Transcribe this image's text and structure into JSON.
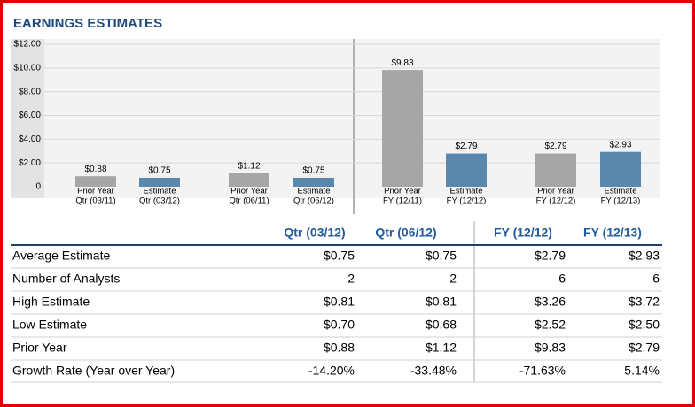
{
  "title": "EARNINGS ESTIMATES",
  "chart_data": {
    "type": "bar",
    "categories": [
      [
        "Prior Year",
        "Qtr (03/11)"
      ],
      [
        "Estimate",
        "Qtr (03/12)"
      ],
      [
        "Prior Year",
        "Qtr (06/11)"
      ],
      [
        "Estimate",
        "Qtr (06/12)"
      ],
      [
        "Prior Year",
        "FY (12/11)"
      ],
      [
        "Estimate",
        "FY (12/12)"
      ],
      [
        "Prior Year",
        "FY (12/12)"
      ],
      [
        "Estimate",
        "FY (12/13)"
      ]
    ],
    "values": [
      0.88,
      0.75,
      1.12,
      0.75,
      9.83,
      2.79,
      2.79,
      2.93
    ],
    "value_labels": [
      "$0.88",
      "$0.75",
      "$1.12",
      "$0.75",
      "$9.83",
      "$2.79",
      "$2.79",
      "$2.93"
    ],
    "colors": [
      "#a6a6a6",
      "#5b87ad",
      "#a6a6a6",
      "#5b87ad",
      "#a6a6a6",
      "#5b87ad",
      "#a6a6a6",
      "#5b87ad"
    ],
    "ylim": [
      0,
      12
    ],
    "yticks": [
      0,
      {
        "value": 2,
        "label": "$2.00"
      },
      {
        "value": 4,
        "label": "$4.00"
      },
      {
        "value": 6,
        "label": "$6.00"
      },
      {
        "value": 8,
        "label": "$8.00"
      },
      {
        "value": 10,
        "label": "$10.00"
      },
      {
        "value": 12,
        "label": "$12.00"
      }
    ],
    "grid": true
  },
  "table": {
    "columns": [
      "Qtr (03/12)",
      "Qtr (06/12)",
      "FY (12/12)",
      "FY (12/13)"
    ],
    "rows": [
      [
        "Average Estimate",
        "$0.75",
        "$0.75",
        "$2.79",
        "$2.93"
      ],
      [
        "Number of Analysts",
        "2",
        "2",
        "6",
        "6"
      ],
      [
        "High Estimate",
        "$0.81",
        "$0.81",
        "$3.26",
        "$3.72"
      ],
      [
        "Low Estimate",
        "$0.70",
        "$0.68",
        "$2.52",
        "$2.50"
      ],
      [
        "Prior Year",
        "$0.88",
        "$1.12",
        "$9.83",
        "$2.79"
      ],
      [
        "Growth Rate (Year over Year)",
        "-14.20%",
        "-33.48%",
        "-71.63%",
        "5.14%"
      ]
    ]
  }
}
